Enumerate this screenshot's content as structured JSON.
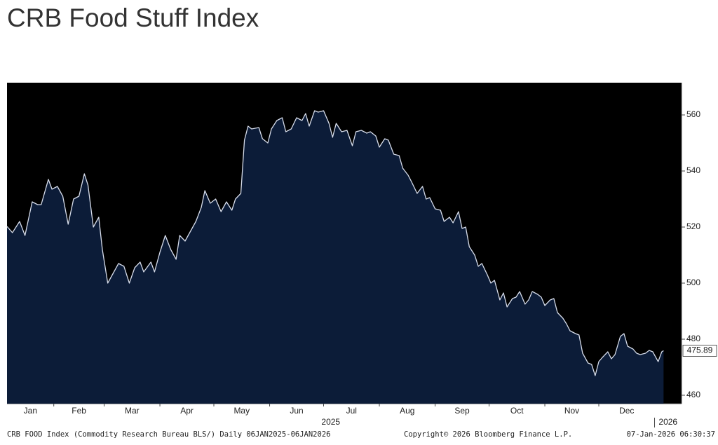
{
  "chart_data": {
    "type": "area",
    "title": "CRB Food Stuff Index",
    "source": "CRB FOOD Index (Commodity Research Bureau BLS/) Daily 06JAN2025-06JAN2026",
    "copyright": "Copyright© 2026 Bloomberg Finance L.P.",
    "timestamp": "07-Jan-2026 06:30:37",
    "line_color": "#d6dcea",
    "fill_color": "#0c1c38",
    "background": "#000000",
    "ylim": [
      457,
      571.5
    ],
    "yticks": [
      460,
      480,
      500,
      520,
      540,
      560
    ],
    "xlim": [
      "2025-01-06",
      "2026-01-16"
    ],
    "xticks": [
      {
        "value": "2025-01",
        "label": "Jan"
      },
      {
        "value": "2025-02",
        "label": "Feb"
      },
      {
        "value": "2025-03",
        "label": "Mar"
      },
      {
        "value": "2025-04",
        "label": "Apr"
      },
      {
        "value": "2025-05",
        "label": "May"
      },
      {
        "value": "2025-06",
        "label": "Jun"
      },
      {
        "value": "2025-07",
        "label": "Jul"
      },
      {
        "value": "2025-08",
        "label": "Aug"
      },
      {
        "value": "2025-09",
        "label": "Sep"
      },
      {
        "value": "2025-10",
        "label": "Oct"
      },
      {
        "value": "2025-11",
        "label": "Nov"
      },
      {
        "value": "2025-12",
        "label": "Dec"
      }
    ],
    "year_ticks": [
      2025,
      2026
    ],
    "x": [
      "2025-01-06",
      "2025-01-09",
      "2025-01-13",
      "2025-01-16",
      "2025-01-20",
      "2025-01-23",
      "2025-01-25",
      "2025-01-29",
      "2025-01-31",
      "2025-02-03",
      "2025-02-06",
      "2025-02-09",
      "2025-02-12",
      "2025-02-15",
      "2025-02-18",
      "2025-02-20",
      "2025-02-23",
      "2025-02-26",
      "2025-02-28",
      "2025-03-03",
      "2025-03-06",
      "2025-03-09",
      "2025-03-12",
      "2025-03-15",
      "2025-03-18",
      "2025-03-21",
      "2025-03-23",
      "2025-03-27",
      "2025-03-29",
      "2025-04-01",
      "2025-04-04",
      "2025-04-07",
      "2025-04-10",
      "2025-04-12",
      "2025-04-15",
      "2025-04-18",
      "2025-04-21",
      "2025-04-24",
      "2025-04-26",
      "2025-04-29",
      "2025-05-02",
      "2025-05-05",
      "2025-05-08",
      "2025-05-11",
      "2025-05-13",
      "2025-05-16",
      "2025-05-18",
      "2025-05-20",
      "2025-05-22",
      "2025-05-26",
      "2025-05-28",
      "2025-05-31",
      "2025-06-02",
      "2025-06-05",
      "2025-06-08",
      "2025-06-10",
      "2025-06-13",
      "2025-06-16",
      "2025-06-19",
      "2025-06-21",
      "2025-06-23",
      "2025-06-26",
      "2025-06-28",
      "2025-07-01",
      "2025-07-04",
      "2025-07-06",
      "2025-07-08",
      "2025-07-11",
      "2025-07-14",
      "2025-07-17",
      "2025-07-19",
      "2025-07-22",
      "2025-07-25",
      "2025-07-27",
      "2025-07-30",
      "2025-08-01",
      "2025-08-04",
      "2025-08-06",
      "2025-08-09",
      "2025-08-12",
      "2025-08-14",
      "2025-08-17",
      "2025-08-19",
      "2025-08-22",
      "2025-08-25",
      "2025-08-27",
      "2025-08-29",
      "2025-09-01",
      "2025-09-04",
      "2025-09-06",
      "2025-09-09",
      "2025-09-11",
      "2025-09-14",
      "2025-09-16",
      "2025-09-18",
      "2025-09-20",
      "2025-09-23",
      "2025-09-25",
      "2025-09-27",
      "2025-09-30",
      "2025-10-02",
      "2025-10-04",
      "2025-10-07",
      "2025-10-09",
      "2025-10-11",
      "2025-10-14",
      "2025-10-16",
      "2025-10-18",
      "2025-10-21",
      "2025-10-23",
      "2025-10-25",
      "2025-10-28",
      "2025-10-30",
      "2025-11-01",
      "2025-11-04",
      "2025-11-06",
      "2025-11-08",
      "2025-11-11",
      "2025-11-13",
      "2025-11-15",
      "2025-11-18",
      "2025-11-20",
      "2025-11-22",
      "2025-11-25",
      "2025-11-27",
      "2025-11-29",
      "2025-12-01",
      "2025-12-03",
      "2025-12-06",
      "2025-12-08",
      "2025-12-10",
      "2025-12-13",
      "2025-12-15",
      "2025-12-17",
      "2025-12-20",
      "2025-12-22",
      "2025-12-24",
      "2025-12-27",
      "2025-12-29",
      "2025-12-31",
      "2026-01-03",
      "2026-01-05",
      "2026-01-06"
    ],
    "values": [
      520.2,
      518,
      522,
      517,
      529,
      528,
      528,
      537,
      533.5,
      534.5,
      531,
      521,
      530,
      531,
      539,
      535,
      520,
      523.5,
      512,
      500,
      503.5,
      507,
      506,
      500,
      505.5,
      507.5,
      504,
      507.5,
      504,
      511,
      517,
      512,
      508.5,
      517,
      515,
      518.5,
      522,
      527,
      533,
      528.5,
      530,
      525.5,
      529,
      526,
      530,
      532,
      551,
      556,
      555,
      555.5,
      551.5,
      550,
      555,
      558,
      559,
      554,
      555,
      559,
      558,
      560.5,
      556,
      561.5,
      561,
      561.5,
      557,
      552,
      557,
      554,
      554.5,
      549,
      554,
      554.5,
      553.5,
      554,
      552.5,
      548.5,
      551.5,
      551,
      546,
      545.5,
      541,
      538.5,
      536,
      532,
      534.5,
      530,
      530.5,
      526.5,
      526,
      522,
      523.5,
      521.5,
      525.5,
      519.5,
      520,
      513,
      510,
      506,
      507,
      503,
      500,
      501,
      494,
      496.5,
      491.5,
      494.5,
      495,
      497,
      492.5,
      494,
      497,
      496,
      495,
      492,
      494,
      494.5,
      489.5,
      487.5,
      485.5,
      483,
      482,
      481.5,
      475,
      471.5,
      471,
      467,
      472,
      473.5,
      475.5,
      473,
      474.5,
      481,
      482,
      477.5,
      476.5,
      475,
      474.5,
      475,
      476,
      475.5,
      472,
      475.5,
      475.89
    ]
  }
}
